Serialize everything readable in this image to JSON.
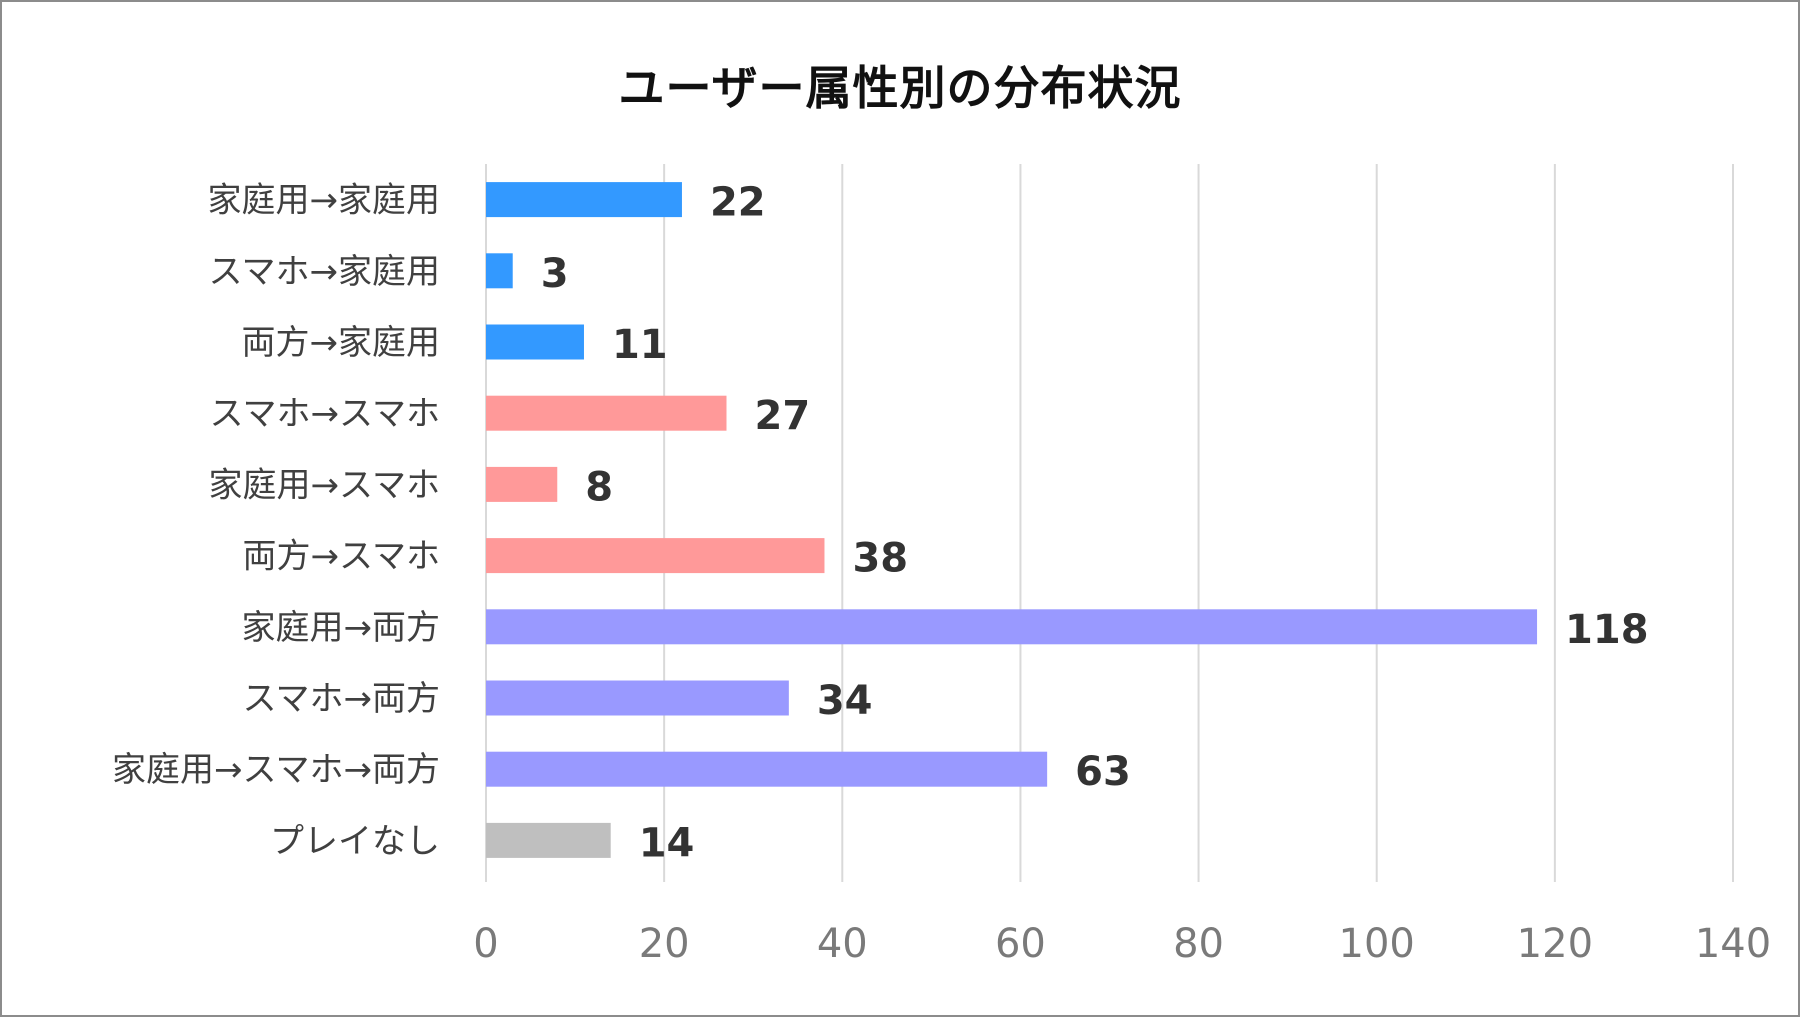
{
  "chart_data": {
    "type": "bar",
    "orientation": "horizontal",
    "title": "ユーザー属性別の分布状況",
    "xlabel": "",
    "ylabel": "",
    "categories": [
      "家庭用→家庭用",
      "スマホ→家庭用",
      "両方→家庭用",
      "スマホ→スマホ",
      "家庭用→スマホ",
      "両方→スマホ",
      "家庭用→両方",
      "スマホ→両方",
      "家庭用→スマホ→両方",
      "プレイなし"
    ],
    "values": [
      22,
      3,
      11,
      27,
      8,
      38,
      118,
      34,
      63,
      14
    ],
    "bar_colors": [
      "#3399ff",
      "#3399ff",
      "#3399ff",
      "#ff9999",
      "#ff9999",
      "#ff9999",
      "#9999ff",
      "#9999ff",
      "#9999ff",
      "#bfbfbf"
    ],
    "xlim": [
      0,
      140
    ],
    "x_ticks": [
      "0",
      "20",
      "40",
      "60",
      "80",
      "100",
      "120",
      "140"
    ],
    "grid": true,
    "data_labels": true,
    "legend": "none"
  }
}
